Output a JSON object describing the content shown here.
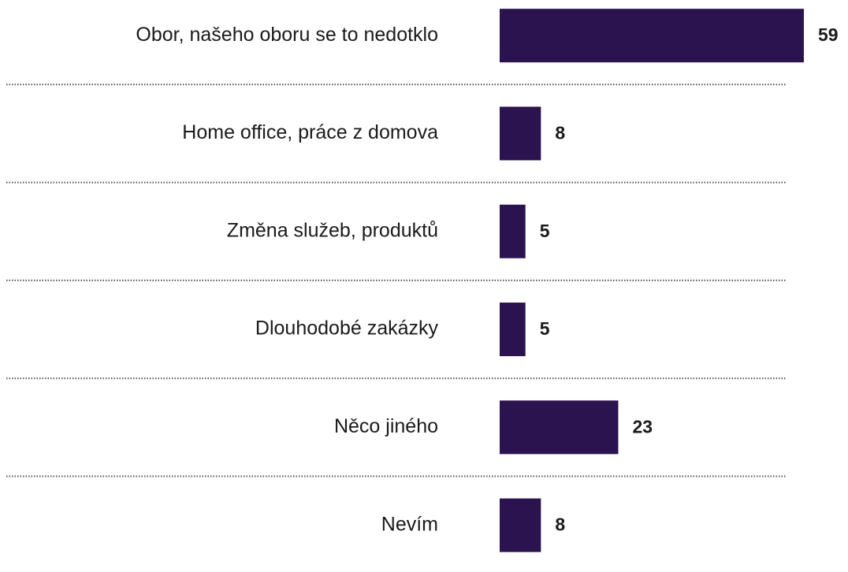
{
  "chart_data": {
    "type": "bar",
    "orientation": "horizontal",
    "categories": [
      "Obor, našeho oboru se to nedotklo",
      "Home office, práce z domova",
      "Změna služeb, produktů",
      "Dlouhodobé zakázky",
      "Něco jiného",
      "Nevím"
    ],
    "values": [
      59,
      8,
      5,
      5,
      23,
      8
    ],
    "color": "#2b1350"
  }
}
